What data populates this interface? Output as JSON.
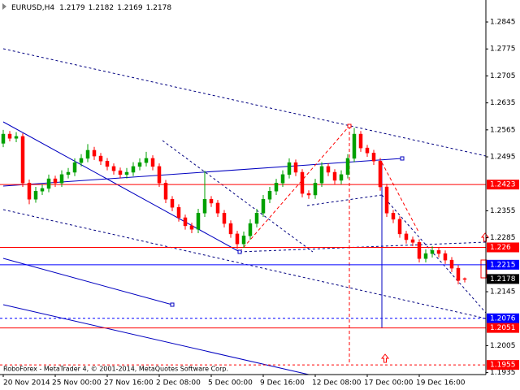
{
  "chart_data": {
    "type": "candlestick",
    "symbol": "EURUSD,H4",
    "quote": [
      1.2179,
      1.2182,
      1.2169,
      1.2178
    ],
    "footer": "RoboForex - MetaTrader 4, © 2001-2014, MetaQuotes Software Corp.",
    "categories": [
      "20 Nov 2014",
      null,
      null,
      null,
      null,
      null,
      null,
      null,
      "25 Nov 00:00",
      null,
      null,
      null,
      null,
      null,
      null,
      null,
      "27 Nov 16:00",
      null,
      null,
      null,
      null,
      null,
      null,
      null,
      "2 Dec 08:00",
      null,
      null,
      null,
      null,
      null,
      null,
      null,
      "5 Dec 00:00",
      null,
      null,
      null,
      null,
      null,
      null,
      null,
      "9 Dec 16:00",
      null,
      null,
      null,
      null,
      null,
      null,
      null,
      "12 Dec 08:00",
      null,
      null,
      null,
      null,
      null,
      null,
      null,
      "17 Dec 00:00",
      null,
      null,
      null,
      null,
      null,
      null,
      null,
      "19 Dec 16:00",
      null,
      null,
      null,
      null,
      null,
      null,
      null
    ],
    "open": [
      1.253,
      1.2554,
      1.2543,
      1.2548,
      1.2427,
      1.2385,
      1.2406,
      1.2413,
      1.2438,
      1.2427,
      1.2449,
      1.2455,
      1.248,
      1.2491,
      1.2512,
      1.2497,
      1.2484,
      1.247,
      1.2459,
      1.2449,
      1.2455,
      1.247,
      1.248,
      1.2491,
      1.247,
      1.2427,
      1.2385,
      1.2364,
      1.2337,
      1.2316,
      1.2307,
      1.2349,
      1.2385,
      1.2375,
      1.2349,
      1.2322,
      1.2295,
      1.2269,
      1.229,
      1.2322,
      1.2349,
      1.2385,
      1.2406,
      1.2427,
      1.2449,
      1.248,
      1.2455,
      1.24,
      1.2396,
      1.2427,
      1.247,
      1.2455,
      1.2434,
      1.2449,
      1.2491,
      1.2554,
      1.2518,
      1.2505,
      1.2484,
      1.2417,
      1.2349,
      1.2333,
      1.2295,
      1.228,
      1.2273,
      1.2231,
      1.2244,
      1.2252,
      1.2244,
      1.2227,
      1.2206,
      1.2179
    ],
    "high": [
      1.2565,
      1.2562,
      1.2559,
      1.2556,
      1.2436,
      1.2417,
      1.2424,
      1.2449,
      1.2446,
      1.246,
      1.2466,
      1.2491,
      1.2502,
      1.2528,
      1.2521,
      1.2505,
      1.2492,
      1.2478,
      1.2467,
      1.2466,
      1.2481,
      1.2491,
      1.2508,
      1.2499,
      1.2478,
      1.2435,
      1.2393,
      1.2372,
      1.2345,
      1.2324,
      1.236,
      1.2459,
      1.2393,
      1.2383,
      1.2357,
      1.233,
      1.2303,
      1.2301,
      1.2333,
      1.236,
      1.2396,
      1.2417,
      1.2438,
      1.246,
      1.2491,
      1.2488,
      1.2463,
      1.2408,
      1.2438,
      1.2481,
      1.2478,
      1.2463,
      1.246,
      1.2502,
      1.257,
      1.2562,
      1.2526,
      1.2513,
      1.2492,
      1.2425,
      1.2357,
      1.2341,
      1.2303,
      1.2288,
      1.2281,
      1.2255,
      1.2263,
      1.226,
      1.2252,
      1.2235,
      1.2214,
      1.2182
    ],
    "low": [
      1.252,
      1.2535,
      1.2533,
      1.2417,
      1.2372,
      1.2376,
      1.2396,
      1.2403,
      1.2417,
      1.2417,
      1.2439,
      1.2445,
      1.247,
      1.2481,
      1.2487,
      1.2474,
      1.246,
      1.2449,
      1.2439,
      1.2439,
      1.2445,
      1.246,
      1.247,
      1.246,
      1.2417,
      1.2375,
      1.2354,
      1.2327,
      1.2306,
      1.2297,
      1.2297,
      1.2339,
      1.2365,
      1.2339,
      1.2312,
      1.2285,
      1.2256,
      1.2259,
      1.228,
      1.2312,
      1.2339,
      1.2375,
      1.2396,
      1.2417,
      1.2439,
      1.2445,
      1.239,
      1.2386,
      1.2386,
      1.2417,
      1.2445,
      1.2424,
      1.2424,
      1.2439,
      1.2481,
      1.2508,
      1.2495,
      1.2474,
      1.2407,
      1.2339,
      1.2323,
      1.2285,
      1.227,
      1.2263,
      1.2221,
      1.2221,
      1.2234,
      1.2234,
      1.2217,
      1.2196,
      1.2164,
      1.2169
    ],
    "close": [
      1.2554,
      1.2543,
      1.2548,
      1.2427,
      1.2385,
      1.2406,
      1.2413,
      1.2438,
      1.2427,
      1.2449,
      1.2455,
      1.248,
      1.2491,
      1.2512,
      1.2497,
      1.2484,
      1.247,
      1.2459,
      1.2449,
      1.2455,
      1.247,
      1.248,
      1.2491,
      1.247,
      1.2427,
      1.2385,
      1.2364,
      1.2337,
      1.2316,
      1.2307,
      1.2349,
      1.2385,
      1.2375,
      1.2349,
      1.2322,
      1.2295,
      1.2269,
      1.229,
      1.2322,
      1.2349,
      1.2385,
      1.2406,
      1.2427,
      1.2449,
      1.248,
      1.2455,
      1.24,
      1.2396,
      1.2427,
      1.247,
      1.2455,
      1.2434,
      1.2449,
      1.2491,
      1.2554,
      1.2518,
      1.2505,
      1.2484,
      1.2417,
      1.2349,
      1.2333,
      1.2295,
      1.228,
      1.2273,
      1.2231,
      1.2244,
      1.2252,
      1.2244,
      1.2227,
      1.2206,
      1.2174,
      1.2178
    ],
    "up_color": "#00a000",
    "down_color": "#ff0000",
    "ylim": [
      1.193,
      1.2902
    ],
    "yticks": [
      1.2845,
      1.2775,
      1.2705,
      1.2635,
      1.2565,
      1.2495,
      1.2355,
      1.2285,
      1.2145,
      1.2005,
      1.1935
    ],
    "levels": [
      {
        "value": 1.2423,
        "color": "#ff0000",
        "style": "solid"
      },
      {
        "value": 1.226,
        "color": "#ff0000",
        "style": "solid"
      },
      {
        "value": 1.2215,
        "color": "#0000ff",
        "style": "solid"
      },
      {
        "value": 1.2178,
        "color": "#000000",
        "style": "none"
      },
      {
        "value": 1.2076,
        "color": "#0000ff",
        "style": "dashed"
      },
      {
        "value": 1.2051,
        "color": "#ff0000",
        "style": "solid"
      },
      {
        "value": 1.1955,
        "color": "#ff0000",
        "style": "dashed"
      }
    ]
  }
}
